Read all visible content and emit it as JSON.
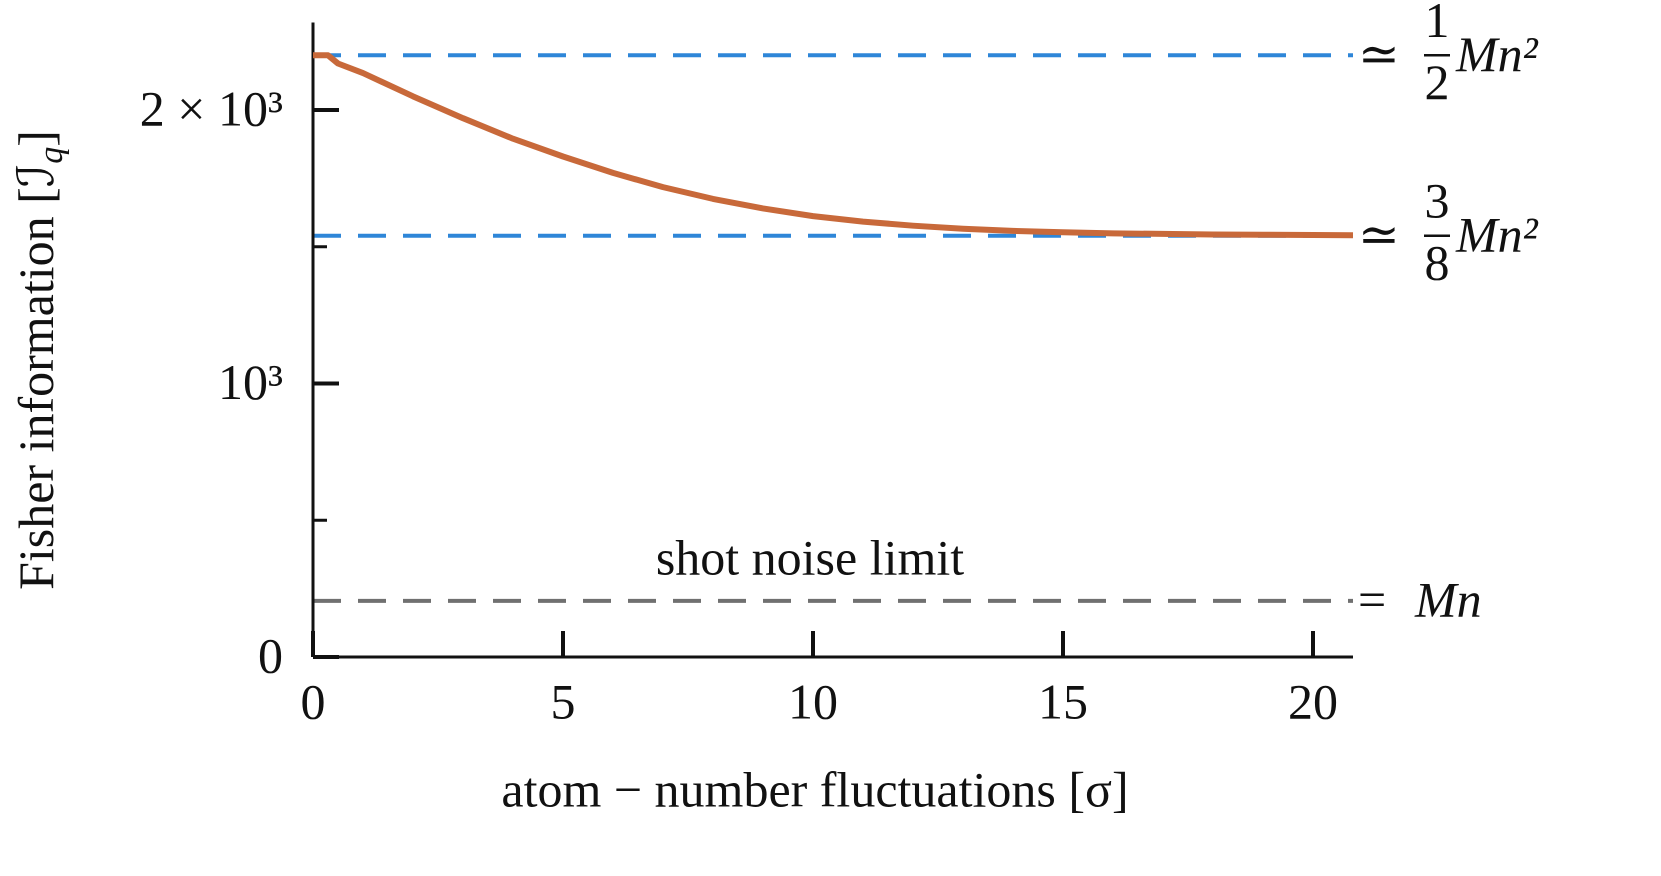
{
  "chart_data": {
    "type": "line",
    "xlabel": "atom − number fluctuations [σ]",
    "ylabel": {
      "text": "Fisher information [ℐ",
      "sub": "q",
      "close": "]"
    },
    "x": [
      0,
      0.3,
      0.5,
      1,
      2,
      3,
      4,
      5,
      6,
      7,
      8,
      9,
      10,
      11,
      12,
      13,
      14,
      15,
      16,
      17,
      18,
      19,
      20,
      20.8
    ],
    "series": [
      {
        "color": "#c8693a",
        "values": [
          2200,
          2200,
          2170,
          2135,
          2050,
          1970,
          1895,
          1830,
          1770,
          1718,
          1675,
          1640,
          1612,
          1592,
          1577,
          1566,
          1558,
          1553,
          1549,
          1547,
          1545,
          1544,
          1543,
          1542
        ]
      }
    ],
    "xlim": [
      0,
      20.8
    ],
    "xticks": [
      0,
      5,
      10,
      15,
      20
    ],
    "ylim": [
      0,
      2320
    ],
    "yticks": [
      0,
      {
        "value": 1000,
        "label": "10³"
      },
      {
        "value": 2000,
        "label": "2 × 10³"
      }
    ],
    "minor_yticks": [
      500,
      1500
    ],
    "reference_lines": [
      {
        "value": 2200,
        "color": "#2e86d8",
        "label": {
          "prefix": "≃",
          "numerator": "1",
          "denominator": "2",
          "suffix": "Mn²"
        }
      },
      {
        "value": 1540,
        "color": "#2e86d8",
        "label": {
          "prefix": "≃",
          "numerator": "3",
          "denominator": "8",
          "suffix": "Mn²"
        }
      },
      {
        "value": 205,
        "color": "#707070",
        "annotation": "shot noise limit",
        "label": {
          "prefix": "=",
          "suffix": "Mn"
        }
      }
    ]
  }
}
